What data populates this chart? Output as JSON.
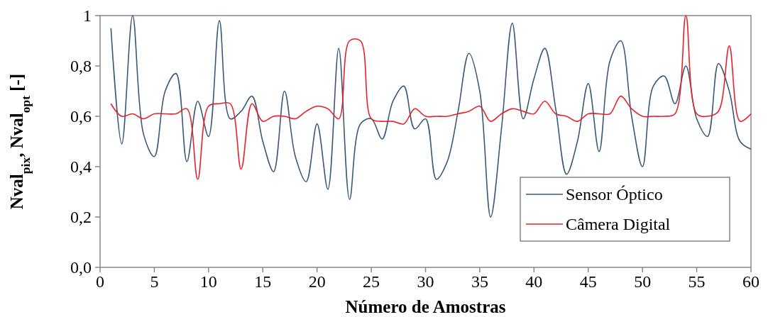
{
  "chart_data": {
    "type": "line",
    "xlabel": "Número de Amostras",
    "ylabel": "Nval$_{pix}$, Nval$_{opt}$ [-]",
    "x": [
      1,
      2,
      3,
      4,
      5,
      6,
      7,
      8,
      9,
      10,
      11,
      12,
      13,
      14,
      15,
      16,
      17,
      18,
      19,
      20,
      21,
      22,
      23,
      24,
      25,
      26,
      27,
      28,
      29,
      30,
      31,
      32,
      33,
      34,
      35,
      36,
      37,
      38,
      39,
      40,
      41,
      42,
      43,
      44,
      45,
      46,
      47,
      48,
      49,
      50,
      51,
      52,
      53,
      54,
      55,
      56,
      57,
      58,
      59,
      60
    ],
    "series": [
      {
        "name": "Sensor Óptico",
        "color": "#3b5a78",
        "values": [
          0.95,
          0.49,
          1.0,
          0.53,
          0.44,
          0.7,
          0.77,
          0.42,
          0.66,
          0.52,
          0.98,
          0.59,
          0.62,
          0.68,
          0.5,
          0.38,
          0.7,
          0.44,
          0.34,
          0.57,
          0.31,
          0.87,
          0.27,
          0.57,
          0.59,
          0.51,
          0.66,
          0.72,
          0.55,
          0.59,
          0.35,
          0.42,
          0.62,
          0.85,
          0.7,
          0.2,
          0.55,
          0.97,
          0.59,
          0.75,
          0.87,
          0.63,
          0.37,
          0.5,
          0.73,
          0.46,
          0.82,
          0.9,
          0.6,
          0.4,
          0.72,
          0.76,
          0.65,
          0.8,
          0.59,
          0.52,
          0.81,
          0.7,
          0.5,
          0.47
        ]
      },
      {
        "name": "Câmera Digital",
        "color": "#e8202a",
        "values": [
          0.65,
          0.6,
          0.61,
          0.59,
          0.61,
          0.61,
          0.61,
          0.63,
          0.35,
          0.64,
          0.65,
          0.65,
          0.39,
          0.65,
          0.58,
          0.6,
          0.6,
          0.59,
          0.62,
          0.64,
          0.63,
          0.59,
          0.9,
          0.9,
          0.59,
          0.58,
          0.58,
          0.57,
          0.63,
          0.6,
          0.6,
          0.6,
          0.61,
          0.62,
          0.64,
          0.58,
          0.61,
          0.63,
          0.62,
          0.61,
          0.66,
          0.61,
          0.6,
          0.58,
          0.61,
          0.61,
          0.61,
          0.68,
          0.63,
          0.6,
          0.6,
          0.6,
          0.61,
          1.0,
          0.61,
          0.6,
          0.62,
          0.88,
          0.58,
          0.61
        ]
      }
    ],
    "xlim": [
      0,
      60
    ],
    "xticks": [
      0,
      5,
      10,
      15,
      20,
      25,
      30,
      35,
      40,
      45,
      50,
      55,
      60
    ],
    "ylim": [
      0,
      1
    ],
    "yticks": [
      {
        "value": 0,
        "label": "0,0"
      },
      {
        "value": 0.2,
        "label": "0,2"
      },
      {
        "value": 0.4,
        "label": "0,4"
      },
      {
        "value": 0.6,
        "label": "0,6"
      },
      {
        "value": 0.8,
        "label": "0,8"
      },
      {
        "value": 1,
        "label": "1"
      }
    ],
    "grid": false,
    "legend": "bottom right",
    "marker": "none",
    "line_style": "solid"
  }
}
